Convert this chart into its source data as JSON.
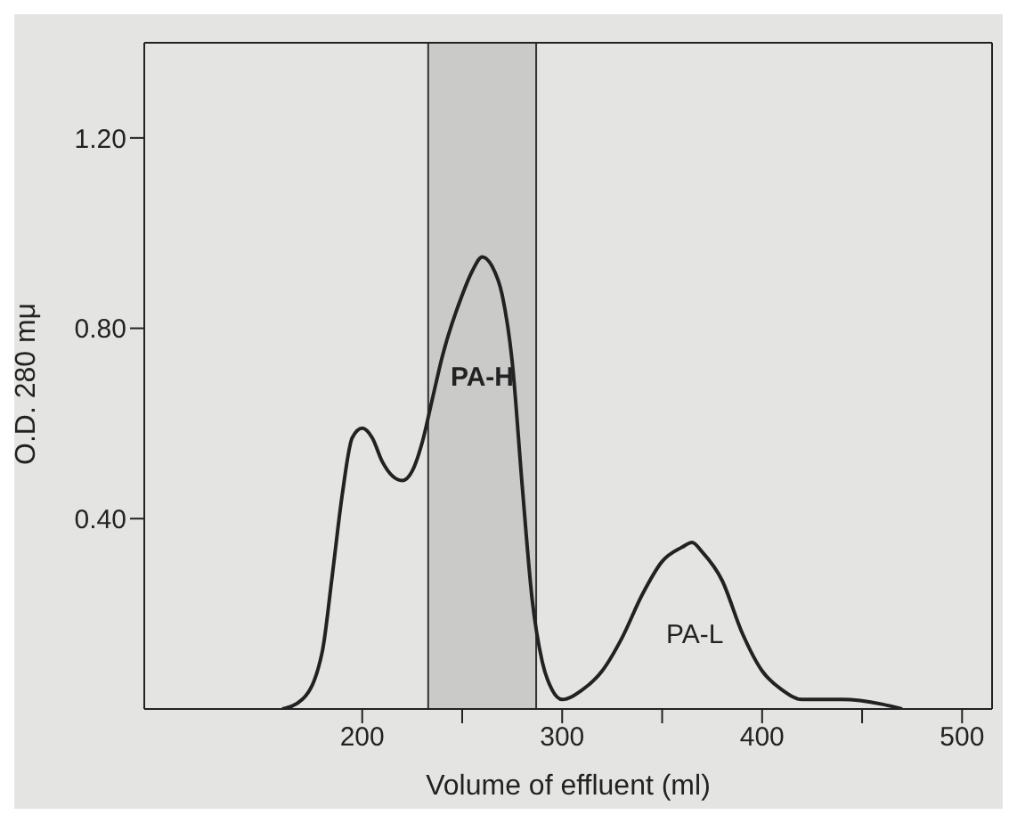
{
  "chart_data": {
    "type": "line",
    "xlabel": "Volume of effluent (ml)",
    "ylabel": "O.D. 280 mμ",
    "x": [
      160,
      170,
      180,
      185,
      190,
      195,
      200,
      205,
      210,
      220,
      225,
      230,
      235,
      240,
      250,
      255,
      260,
      265,
      270,
      275,
      280,
      285,
      290,
      295,
      300,
      310,
      320,
      330,
      340,
      350,
      360,
      365,
      370,
      380,
      390,
      400,
      410,
      420,
      440,
      460,
      470
    ],
    "series": [
      {
        "color": "#222222",
        "values": [
          0,
          0.02,
          0.12,
          0.28,
          0.45,
          0.57,
          0.59,
          0.57,
          0.52,
          0.48,
          0.5,
          0.56,
          0.65,
          0.74,
          0.87,
          0.92,
          0.95,
          0.93,
          0.87,
          0.73,
          0.47,
          0.23,
          0.1,
          0.04,
          0.02,
          0.04,
          0.08,
          0.15,
          0.24,
          0.31,
          0.34,
          0.35,
          0.33,
          0.27,
          0.16,
          0.08,
          0.04,
          0.02,
          0.02,
          0.01,
          0
        ]
      }
    ],
    "xlim": [
      91,
      515
    ],
    "xticks": [
      200,
      {
        "value": 250,
        "label": null
      },
      300,
      {
        "value": 350,
        "label": null
      },
      400,
      {
        "value": 450,
        "label": null
      },
      500
    ],
    "ylim": [
      0,
      1.4
    ],
    "yticks": [
      {
        "value": 0.4,
        "label": "0.40"
      },
      {
        "value": 0.8,
        "label": "0.80"
      },
      {
        "value": 1.2,
        "label": "1.20"
      }
    ],
    "bands": [
      {
        "axis": "x",
        "from": 233,
        "to": 287,
        "label": "PA-H",
        "color": "#9a9a9a"
      }
    ],
    "annotations": [
      "PA-L"
    ],
    "grid": false,
    "legend": false,
    "marker": "none",
    "line_style": "solid"
  }
}
